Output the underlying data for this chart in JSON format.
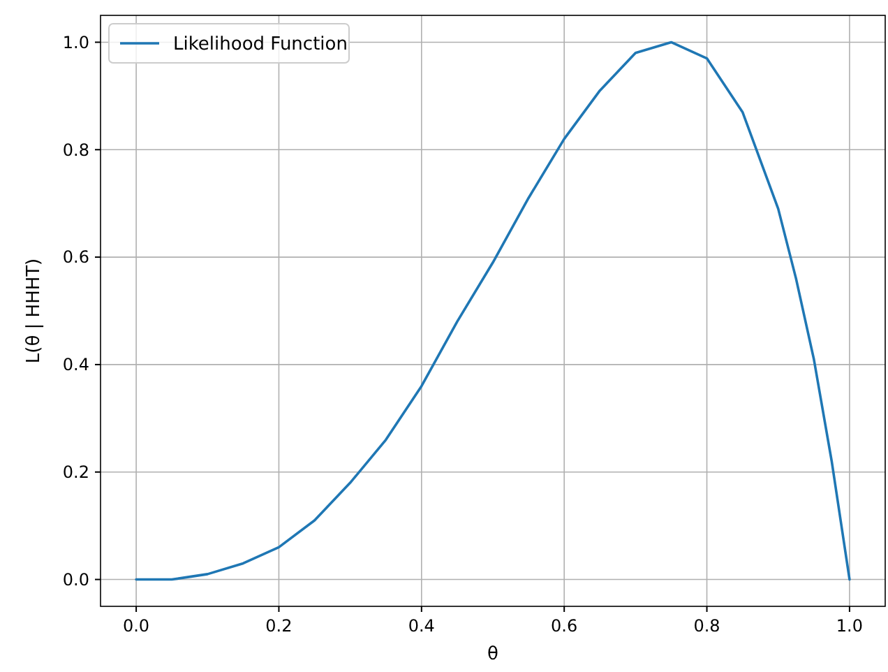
{
  "chart_data": {
    "type": "line",
    "xlabel": "θ",
    "ylabel": "L(θ | HHHT)",
    "x": [
      0,
      0.05,
      0.1,
      0.15,
      0.2,
      0.25,
      0.3,
      0.35,
      0.4,
      0.45,
      0.5,
      0.55,
      0.6,
      0.65,
      0.7,
      0.75,
      0.8,
      0.85,
      0.9,
      0.925,
      0.95,
      0.975,
      1.0
    ],
    "series": [
      {
        "name": "Likelihood Function",
        "color": "#1f77b4",
        "values": [
          0,
          0.0,
          0.01,
          0.03,
          0.06,
          0.11,
          0.18,
          0.26,
          0.36,
          0.48,
          0.59,
          0.71,
          0.82,
          0.91,
          0.98,
          1.0,
          0.97,
          0.87,
          0.69,
          0.56,
          0.41,
          0.22,
          0
        ]
      }
    ],
    "xlim": [
      -0.05,
      1.05
    ],
    "ylim": [
      -0.05,
      1.05
    ],
    "xticks": [
      {
        "value": 0,
        "label": "0.0"
      },
      {
        "value": 0.2,
        "label": "0.2"
      },
      {
        "value": 0.4,
        "label": "0.4"
      },
      {
        "value": 0.6,
        "label": "0.6"
      },
      {
        "value": 0.8,
        "label": "0.8"
      },
      {
        "value": 1,
        "label": "1.0"
      }
    ],
    "yticks": [
      {
        "value": 0,
        "label": "0.0"
      },
      {
        "value": 0.2,
        "label": "0.2"
      },
      {
        "value": 0.4,
        "label": "0.4"
      },
      {
        "value": 0.6,
        "label": "0.6"
      },
      {
        "value": 0.8,
        "label": "0.8"
      },
      {
        "value": 1,
        "label": "1.0"
      }
    ],
    "grid": true,
    "legend": "top left",
    "marker": "none",
    "line_style": "solid"
  }
}
